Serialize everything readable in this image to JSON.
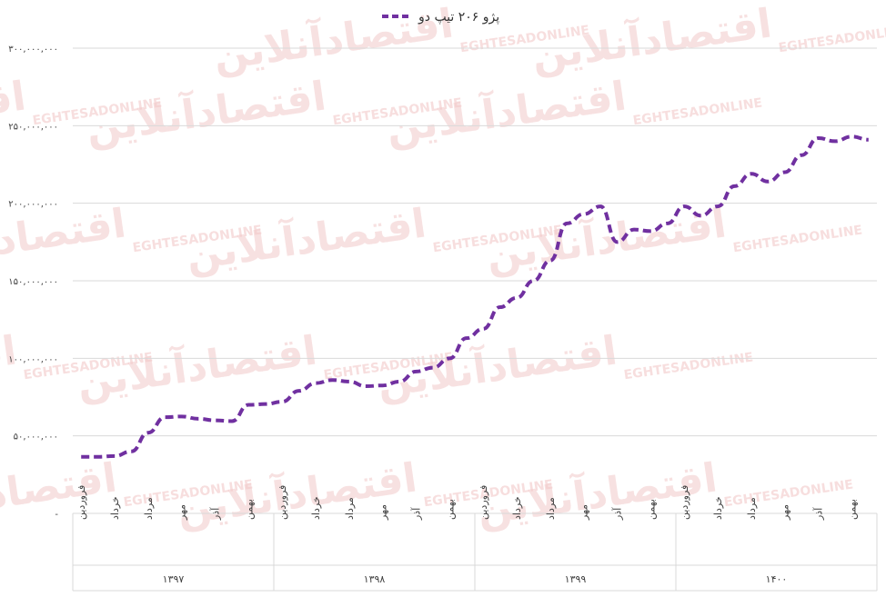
{
  "chart_data": {
    "type": "line",
    "title": "",
    "xlabel": "",
    "ylabel": "",
    "series": [
      {
        "name": "پژو ۲۰۶ تیپ دو",
        "color": "#7030a0",
        "dash": "dashed",
        "values": [
          36500000,
          36500000,
          37000000,
          40000000,
          52000000,
          62000000,
          62500000,
          61000000,
          60000000,
          59500000,
          70000000,
          70500000,
          72000000,
          79000000,
          84000000,
          86000000,
          85000000,
          82000000,
          82500000,
          85000000,
          91500000,
          94000000,
          100000000,
          113000000,
          119000000,
          133000000,
          139000000,
          150000000,
          163000000,
          187000000,
          193000000,
          198000000,
          175000000,
          183000000,
          182000000,
          187000000,
          198000000,
          192000000,
          198000000,
          211000000,
          219000000,
          214000000,
          220000000,
          231000000,
          242000000,
          240000000,
          243000000,
          241000000
        ]
      }
    ],
    "x_tick_labels": [
      "فروردین",
      "خرداد",
      "مرداد",
      "مهر",
      "آذر",
      "بهمن",
      "فروردین",
      "خرداد",
      "مرداد",
      "مهر",
      "آذر",
      "بهمن",
      "فروردین",
      "خرداد",
      "مرداد",
      "مهر",
      "آذر",
      "بهمن",
      "فروردین",
      "خرداد",
      "مرداد",
      "مهر",
      "آذر",
      "بهمن"
    ],
    "year_groups": [
      "۱۳۹۷",
      "۱۳۹۸",
      "۱۳۹۹",
      "۱۴۰۰"
    ],
    "y_tick_labels": [
      "۳۰۰,۰۰۰,۰۰۰",
      "۲۵۰,۰۰۰,۰۰۰",
      "۲۰۰,۰۰۰,۰۰۰",
      "۱۵۰,۰۰۰,۰۰۰",
      "۱۰۰,۰۰۰,۰۰۰",
      "۵۰,۰۰۰,۰۰۰",
      "-"
    ],
    "y_tick_values": [
      300000000,
      250000000,
      200000000,
      150000000,
      100000000,
      50000000,
      0
    ],
    "ylim": [
      0,
      300000000
    ],
    "grid": true,
    "legend_position": "top-center"
  },
  "watermark": {
    "text": "اقتصادآنلاین",
    "subtext": "EGHTESADONLINE"
  }
}
